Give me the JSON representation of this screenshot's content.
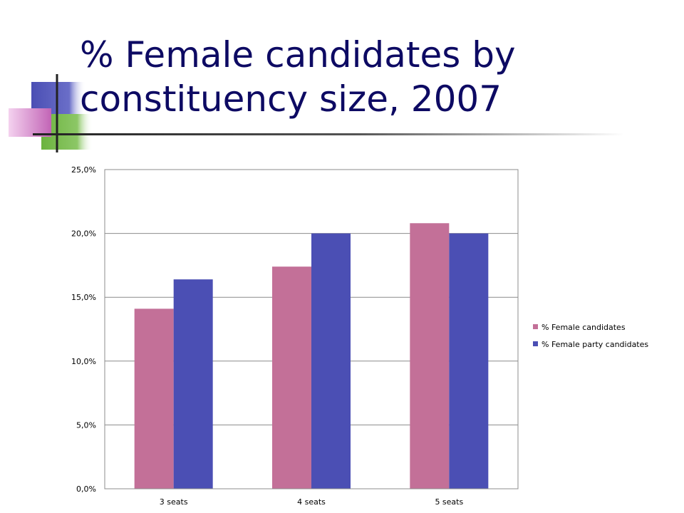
{
  "slide": {
    "title": "% Female candidates by constituency size, 2007"
  },
  "colors": {
    "title": "#0d0a63",
    "series_1": "#c37098",
    "series_2": "#4b4fb4",
    "decor_blue": "#4b4fb4",
    "decor_green": "#6cb33f",
    "decor_pink": "#d070c0"
  },
  "chart_data": {
    "type": "bar",
    "categories": [
      "3 seats",
      "4 seats",
      "5 seats"
    ],
    "series": [
      {
        "name": "% Female candidates",
        "values": [
          14.1,
          17.4,
          20.8
        ],
        "color": "#c37098"
      },
      {
        "name": "% Female party candidates",
        "values": [
          16.4,
          20.0,
          20.0
        ],
        "color": "#4b4fb4"
      }
    ],
    "ylim": [
      0,
      25
    ],
    "yticks": [
      0,
      5,
      10,
      15,
      20,
      25
    ],
    "ytick_labels": [
      "0,0%",
      "5,0%",
      "10,0%",
      "15,0%",
      "20,0%",
      "25,0%"
    ],
    "grid": true,
    "legend_position": "right"
  }
}
